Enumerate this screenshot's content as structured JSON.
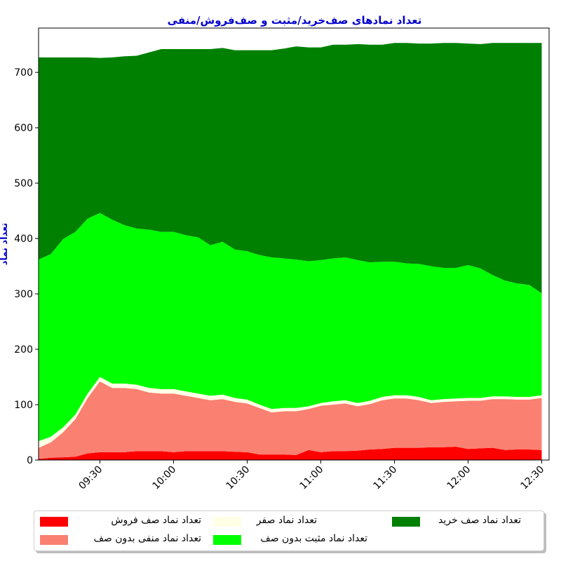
{
  "chart_data": {
    "type": "area",
    "stacked": true,
    "title": "تعداد نمادهای صف‌خرید/مثبت و صف‌فروش/منفی",
    "xlabel": "",
    "ylabel": "تعداد نماد",
    "ylim": [
      0,
      780
    ],
    "yticks": [
      0,
      100,
      200,
      300,
      400,
      500,
      600,
      700
    ],
    "xlim": [
      "09:05",
      "12:33"
    ],
    "xtick_labels": [
      "09:30",
      "10:00",
      "10:30",
      "11:00",
      "11:30",
      "12:00",
      "12:30"
    ],
    "x": [
      "09:05",
      "09:10",
      "09:15",
      "09:20",
      "09:25",
      "09:30",
      "09:35",
      "09:40",
      "09:45",
      "09:50",
      "09:55",
      "10:00",
      "10:05",
      "10:10",
      "10:15",
      "10:20",
      "10:25",
      "10:30",
      "10:35",
      "10:40",
      "10:45",
      "10:50",
      "10:55",
      "11:00",
      "11:05",
      "11:10",
      "11:15",
      "11:20",
      "11:25",
      "11:30",
      "11:35",
      "11:40",
      "11:45",
      "11:50",
      "11:55",
      "12:00",
      "12:05",
      "12:10",
      "12:15",
      "12:20",
      "12:25",
      "12:30"
    ],
    "series": [
      {
        "name": "تعداد نماد صف فروش",
        "color": "#ff0000",
        "values": [
          2,
          4,
          5,
          6,
          12,
          14,
          14,
          14,
          16,
          16,
          16,
          14,
          16,
          16,
          16,
          16,
          15,
          14,
          10,
          10,
          10,
          9,
          18,
          14,
          16,
          16,
          17,
          19,
          20,
          22,
          22,
          22,
          23,
          23,
          24,
          20,
          21,
          22,
          18,
          19,
          19,
          18
        ]
      },
      {
        "name": "تعداد نماد منفی بدون صف",
        "color": "#fa8072",
        "values": [
          20,
          28,
          45,
          68,
          100,
          128,
          116,
          116,
          112,
          106,
          104,
          106,
          100,
          96,
          92,
          94,
          90,
          88,
          84,
          76,
          78,
          79,
          74,
          84,
          84,
          86,
          80,
          82,
          88,
          89,
          89,
          86,
          80,
          82,
          82,
          87,
          86,
          88,
          92,
          90,
          90,
          94
        ]
      },
      {
        "name": "تعداد نماد صفر",
        "color": "#ffffe6",
        "values": [
          12,
          10,
          9,
          8,
          8,
          8,
          8,
          8,
          8,
          8,
          8,
          8,
          8,
          8,
          8,
          8,
          7,
          7,
          6,
          6,
          6,
          6,
          5,
          5,
          6,
          6,
          6,
          6,
          6,
          6,
          6,
          6,
          5,
          5,
          5,
          5,
          5,
          5,
          5,
          5,
          5,
          5
        ]
      },
      {
        "name": "تعداد نماد مثبت بدون صف",
        "color": "#00ff00",
        "values": [
          328,
          330,
          340,
          330,
          316,
          296,
          296,
          286,
          282,
          286,
          284,
          284,
          282,
          282,
          272,
          276,
          268,
          268,
          270,
          274,
          270,
          268,
          262,
          258,
          258,
          258,
          258,
          250,
          244,
          241,
          238,
          240,
          242,
          237,
          236,
          240,
          234,
          219,
          209,
          205,
          202,
          184
        ]
      },
      {
        "name": "تعداد نماد صف خرید",
        "color": "#008000",
        "values": [
          365,
          355,
          328,
          315,
          291,
          280,
          293,
          305,
          312,
          320,
          330,
          330,
          336,
          340,
          354,
          350,
          360,
          363,
          370,
          374,
          379,
          385,
          386,
          384,
          386,
          384,
          390,
          393,
          392,
          395,
          398,
          398,
          402,
          406,
          406,
          400,
          405,
          419,
          429,
          434,
          437,
          452
        ]
      }
    ],
    "legend_position": "lower center",
    "grid": false
  }
}
